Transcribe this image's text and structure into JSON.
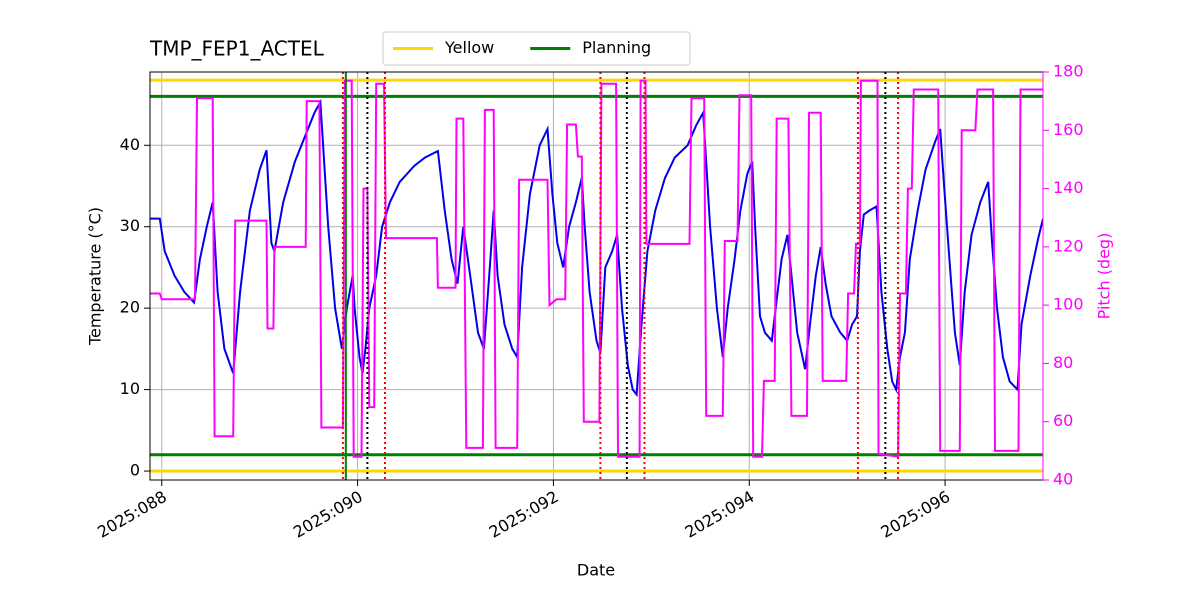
{
  "chart_data": {
    "type": "line",
    "title": "TMP_FEP1_ACTEL",
    "xlabel": "Date",
    "ylabel": "Temperature (°C)",
    "y2label": "Pitch (deg)",
    "xlim": [
      87.88,
      97.0
    ],
    "xticks": [
      {
        "value": 88,
        "label": "2025:088"
      },
      {
        "value": 90,
        "label": "2025:090"
      },
      {
        "value": 92,
        "label": "2025:092"
      },
      {
        "value": 94,
        "label": "2025:094"
      },
      {
        "value": 96,
        "label": "2025:096"
      }
    ],
    "ylim": [
      -1.1,
      49
    ],
    "yticks": [
      0,
      10,
      20,
      30,
      40
    ],
    "y2lim": [
      40,
      180
    ],
    "y2ticks": [
      40,
      60,
      80,
      100,
      120,
      140,
      160,
      180
    ],
    "y2color": "#ff00ff",
    "grid": true,
    "legend": "upper center",
    "series": [
      {
        "color": "#0000ee",
        "axis": "y",
        "x": [
          87.88,
          87.98,
          88.03,
          88.13,
          88.23,
          88.33,
          88.39,
          88.46,
          88.52,
          88.57,
          88.64,
          88.73,
          88.8,
          88.9,
          89.0,
          89.07,
          89.12,
          89.15,
          89.24,
          89.36,
          89.46,
          89.56,
          89.62,
          89.7,
          89.77,
          89.84,
          89.89,
          89.95,
          89.97,
          90.02,
          90.05,
          90.08,
          90.12,
          90.19,
          90.25,
          90.33,
          90.43,
          90.58,
          90.69,
          90.82,
          90.89,
          90.96,
          91.02,
          91.08,
          91.15,
          91.23,
          91.29,
          91.35,
          91.39,
          91.43,
          91.5,
          91.58,
          91.63,
          91.68,
          91.76,
          91.86,
          91.94,
          91.99,
          92.04,
          92.1,
          92.16,
          92.23,
          92.29,
          92.32,
          92.37,
          92.44,
          92.48,
          92.53,
          92.6,
          92.65,
          92.7,
          92.76,
          92.81,
          92.85,
          92.9,
          92.96,
          93.04,
          93.14,
          93.24,
          93.37,
          93.46,
          93.53,
          93.6,
          93.67,
          93.73,
          93.78,
          93.85,
          93.91,
          93.98,
          94.03,
          94.06,
          94.11,
          94.16,
          94.23,
          94.27,
          94.33,
          94.39,
          94.44,
          94.49,
          94.57,
          94.62,
          94.68,
          94.73,
          94.78,
          94.84,
          94.93,
          95.0,
          95.05,
          95.1,
          95.13,
          95.17,
          95.23,
          95.3,
          95.35,
          95.41,
          95.46,
          95.5,
          95.54,
          95.59,
          95.64,
          95.72,
          95.8,
          95.9,
          95.95,
          95.99,
          96.05,
          96.1,
          96.15,
          96.2,
          96.27,
          96.36,
          96.44,
          96.48,
          96.53,
          96.59,
          96.66,
          96.74,
          96.78,
          96.87,
          96.95,
          97.0
        ],
        "values": [
          31,
          31,
          27,
          24,
          22,
          20.7,
          26,
          30,
          33,
          22,
          15,
          12,
          22,
          32,
          37,
          39.4,
          28,
          27,
          33,
          38,
          41,
          44,
          45.3,
          30,
          20,
          15,
          20,
          24,
          20,
          14,
          12,
          15,
          20,
          24,
          30,
          33,
          35.5,
          37.5,
          38.5,
          39.3,
          32,
          26,
          23,
          30,
          24,
          17,
          15,
          25,
          32,
          24,
          18,
          15,
          14,
          25,
          34,
          40,
          42,
          34,
          28,
          25,
          30,
          33,
          36,
          30,
          22,
          16,
          14.5,
          25,
          27,
          29,
          20,
          13,
          10,
          9.4,
          18,
          27,
          32,
          36,
          38.5,
          40,
          42.5,
          44,
          30,
          20,
          14,
          20,
          26,
          32,
          36.5,
          38,
          30,
          19,
          17,
          16,
          20,
          26,
          29,
          23,
          17,
          12.5,
          18,
          24,
          27.5,
          23,
          19,
          17,
          16,
          18,
          19,
          27,
          31.5,
          32,
          32.5,
          22,
          15,
          11,
          10,
          14,
          17,
          26,
          32,
          37,
          40.5,
          42,
          35,
          25,
          17,
          13,
          22,
          29,
          33,
          35.5,
          28,
          20,
          14,
          11,
          10,
          18,
          24,
          28.5,
          31
        ]
      },
      {
        "color": "#ff00ff",
        "axis": "y2",
        "x": [
          87.88,
          87.98,
          88.0,
          88.34,
          88.36,
          88.52,
          88.54,
          88.73,
          88.75,
          89.07,
          89.08,
          89.14,
          89.15,
          89.47,
          89.48,
          89.61,
          89.63,
          89.85,
          89.87,
          89.94,
          89.96,
          90.04,
          90.06,
          90.1,
          90.12,
          90.17,
          90.19,
          90.27,
          90.29,
          90.81,
          90.82,
          91.0,
          91.01,
          91.08,
          91.11,
          91.28,
          91.3,
          91.39,
          91.41,
          91.63,
          91.65,
          91.94,
          91.96,
          92.03,
          92.12,
          92.14,
          92.23,
          92.25,
          92.29,
          92.31,
          92.47,
          92.49,
          92.64,
          92.66,
          92.88,
          92.89,
          92.94,
          92.95,
          93.39,
          93.41,
          93.54,
          93.56,
          93.73,
          93.75,
          93.88,
          93.9,
          94.02,
          94.04,
          94.13,
          94.15,
          94.26,
          94.28,
          94.4,
          94.43,
          94.59,
          94.61,
          94.73,
          94.75,
          94.99,
          95.01,
          95.07,
          95.09,
          95.13,
          95.14,
          95.31,
          95.32,
          95.52,
          95.54,
          95.6,
          95.62,
          95.66,
          95.68,
          95.93,
          95.95,
          96.15,
          96.17,
          96.31,
          96.33,
          96.49,
          96.51,
          96.75,
          96.77,
          97.0
        ],
        "values": [
          104,
          104,
          102,
          102,
          171,
          171,
          55,
          55,
          129,
          129,
          92,
          92,
          120,
          120,
          170,
          170,
          58,
          58,
          177,
          177,
          48,
          48,
          140,
          140,
          65,
          65,
          176,
          176,
          123,
          123,
          106,
          106,
          164,
          164,
          51,
          51,
          167,
          167,
          51,
          51,
          143,
          143,
          100,
          102,
          102,
          162,
          162,
          151,
          151,
          60,
          60,
          176,
          176,
          48,
          48,
          177,
          177,
          121,
          121,
          171,
          171,
          62,
          62,
          122,
          122,
          172,
          172,
          48,
          48,
          74,
          74,
          164,
          164,
          62,
          62,
          166,
          166,
          74,
          74,
          104,
          104,
          121,
          121,
          177,
          177,
          49,
          48,
          104,
          104,
          140,
          140,
          174,
          174,
          50,
          50,
          160,
          160,
          174,
          174,
          50,
          50,
          174,
          174
        ]
      }
    ],
    "hlines": [
      {
        "name": "Yellow",
        "color": "#ffd700",
        "values": [
          48,
          0
        ]
      },
      {
        "name": "Planning",
        "color": "#008000",
        "values": [
          46,
          2
        ]
      }
    ],
    "vlines": [
      {
        "color": "#008000",
        "style": "solid",
        "values": [
          89.88
        ]
      },
      {
        "color": "#ff0000",
        "style": "dotted",
        "values": [
          89.85,
          90.28,
          92.48,
          92.93,
          95.11,
          95.52
        ]
      },
      {
        "color": "#000000",
        "style": "dotted",
        "values": [
          90.1,
          92.75,
          95.39
        ]
      }
    ]
  }
}
